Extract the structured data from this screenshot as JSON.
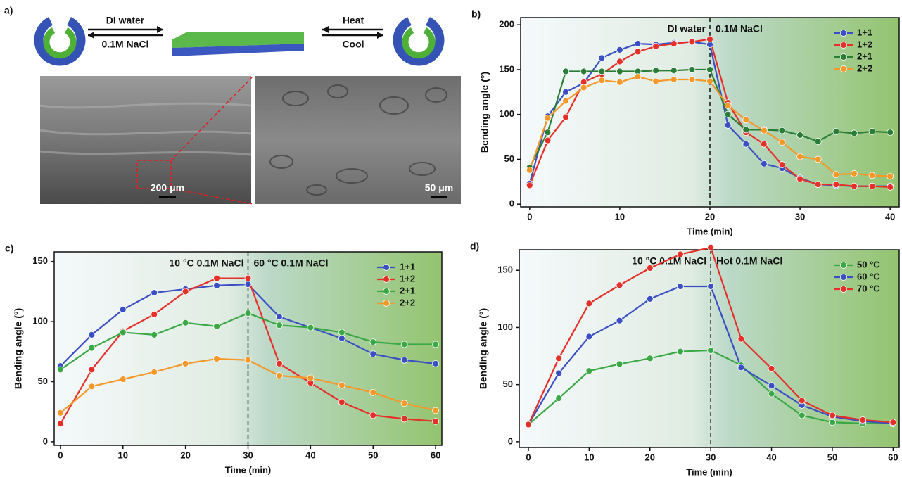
{
  "panel_a": {
    "label": "a)",
    "left_top": "DI water",
    "left_bottom": "0.1M NaCl",
    "right_top": "Heat",
    "right_bottom": "Cool",
    "scale_left": "200 μm",
    "scale_right": "50 μm"
  },
  "chart_data": [
    {
      "type": "line",
      "panel_label": "b)",
      "x_label": "Time (min)",
      "y_label": "Bending angle (°)",
      "annotations": [
        "DI water",
        "0.1M NaCl"
      ],
      "vline": 20,
      "xlim": [
        -1,
        41
      ],
      "ylim": [
        -3,
        208
      ],
      "xticks": [
        0,
        10,
        20,
        30,
        40
      ],
      "yticks": [
        0,
        50,
        100,
        150,
        200
      ],
      "legend": "upper right",
      "x": [
        0,
        2,
        4,
        6,
        8,
        10,
        12,
        14,
        16,
        18,
        20,
        22,
        24,
        26,
        28,
        30,
        32,
        34,
        36,
        38,
        40
      ],
      "series": [
        {
          "name": "1+1",
          "color": "#3b4fc4",
          "values": [
            23,
            98,
            125,
            135,
            163,
            172,
            179,
            178,
            180,
            181,
            178,
            88,
            67,
            45,
            40,
            29,
            22,
            21,
            20,
            20,
            20
          ]
        },
        {
          "name": "1+2",
          "color": "#e5302a",
          "values": [
            21,
            71,
            97,
            136,
            145,
            159,
            170,
            176,
            179,
            181,
            184,
            113,
            80,
            67,
            44,
            28,
            22,
            22,
            20,
            20,
            19
          ]
        },
        {
          "name": "2+1",
          "color": "#2a7d36",
          "values": [
            41,
            80,
            148,
            148,
            148,
            148,
            148,
            149,
            149,
            150,
            150,
            100,
            83,
            83,
            82,
            77,
            70,
            81,
            79,
            81,
            80
          ]
        },
        {
          "name": "2+2",
          "color": "#f5982a",
          "values": [
            38,
            96,
            115,
            130,
            138,
            136,
            142,
            137,
            139,
            139,
            137,
            110,
            94,
            82,
            69,
            53,
            50,
            33,
            34,
            32,
            31
          ]
        }
      ]
    },
    {
      "type": "line",
      "panel_label": "c)",
      "x_label": "Time (min)",
      "y_label": "Bending angle (°)",
      "annotations": [
        "10 °C 0.1M NaCl",
        "60 °C 0.1M NaCl"
      ],
      "vline": 30,
      "xlim": [
        -1,
        61
      ],
      "ylim": [
        -3,
        158
      ],
      "xticks": [
        0,
        10,
        20,
        30,
        40,
        50,
        60
      ],
      "yticks": [
        0,
        50,
        100,
        150
      ],
      "legend": "upper right",
      "x": [
        0,
        5,
        10,
        15,
        20,
        25,
        30,
        35,
        40,
        45,
        50,
        55,
        60
      ],
      "series": [
        {
          "name": "1+1",
          "color": "#3b4fc4",
          "values": [
            63,
            89,
            110,
            124,
            127,
            130,
            131,
            104,
            95,
            86,
            73,
            68,
            65
          ]
        },
        {
          "name": "1+2",
          "color": "#e5302a",
          "values": [
            15,
            60,
            92,
            106,
            125,
            136,
            136,
            65,
            49,
            33,
            22,
            19,
            17
          ]
        },
        {
          "name": "2+1",
          "color": "#3aa845",
          "values": [
            60,
            78,
            91,
            89,
            99,
            96,
            107,
            97,
            95,
            91,
            83,
            81,
            81
          ]
        },
        {
          "name": "2+2",
          "color": "#f5982a",
          "values": [
            24,
            46,
            52,
            58,
            65,
            69,
            68,
            55,
            53,
            47,
            41,
            32,
            26
          ]
        }
      ]
    },
    {
      "type": "line",
      "panel_label": "d)",
      "x_label": "Time (min)",
      "y_label": "Bending angle (°)",
      "annotations": [
        "10 °C 0.1M NaCl",
        "Hot 0.1M NaCl"
      ],
      "vline": 30,
      "xlim": [
        -1.5,
        61
      ],
      "ylim": [
        -5,
        168
      ],
      "xticks": [
        0,
        10,
        20,
        30,
        40,
        50,
        60
      ],
      "yticks": [
        0,
        50,
        100,
        150
      ],
      "legend": "upper right",
      "x": [
        0,
        5,
        10,
        15,
        20,
        25,
        30,
        35,
        40,
        45,
        50,
        55,
        60
      ],
      "series": [
        {
          "name": "50 °C",
          "color": "#3aa845",
          "values": [
            15,
            38,
            62,
            68,
            73,
            79,
            80,
            67,
            42,
            23,
            17,
            16,
            16
          ]
        },
        {
          "name": "60 °C",
          "color": "#3b4fc4",
          "values": [
            15,
            60,
            92,
            106,
            125,
            136,
            136,
            65,
            49,
            32,
            22,
            18,
            16
          ]
        },
        {
          "name": "70 °C",
          "color": "#e5302a",
          "values": [
            15,
            73,
            121,
            137,
            152,
            164,
            170,
            90,
            64,
            36,
            23,
            19,
            17
          ]
        }
      ]
    }
  ]
}
